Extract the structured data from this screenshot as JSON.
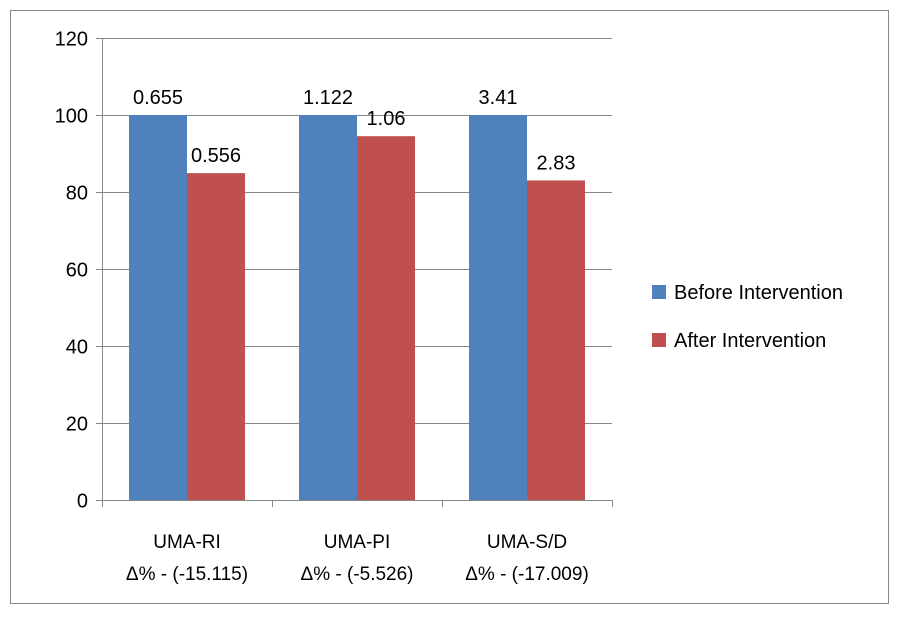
{
  "chart_data": {
    "type": "bar",
    "title": "",
    "xlabel": "",
    "ylabel": "",
    "ylim": [
      0,
      120
    ],
    "yticks": [
      0,
      20,
      40,
      60,
      80,
      100,
      120
    ],
    "grid": true,
    "legend_position": "right",
    "categories": [
      {
        "name": "UMA-RI",
        "delta": "Δ% - (-15.115)"
      },
      {
        "name": "UMA-PI",
        "delta": "Δ% - (-5.526)"
      },
      {
        "name": "UMA-S/D",
        "delta": "Δ% - (-17.009)"
      }
    ],
    "series": [
      {
        "name": "Before Intervention",
        "color": "#4F81BD",
        "values": [
          100,
          100,
          100
        ],
        "labels": [
          "0.655",
          "1.122",
          "3.41"
        ]
      },
      {
        "name": "After Intervention",
        "color": "#C0504D",
        "values": [
          84.9,
          94.5,
          83.0
        ],
        "labels": [
          "0.556",
          "1.06",
          "2.83"
        ]
      }
    ]
  }
}
